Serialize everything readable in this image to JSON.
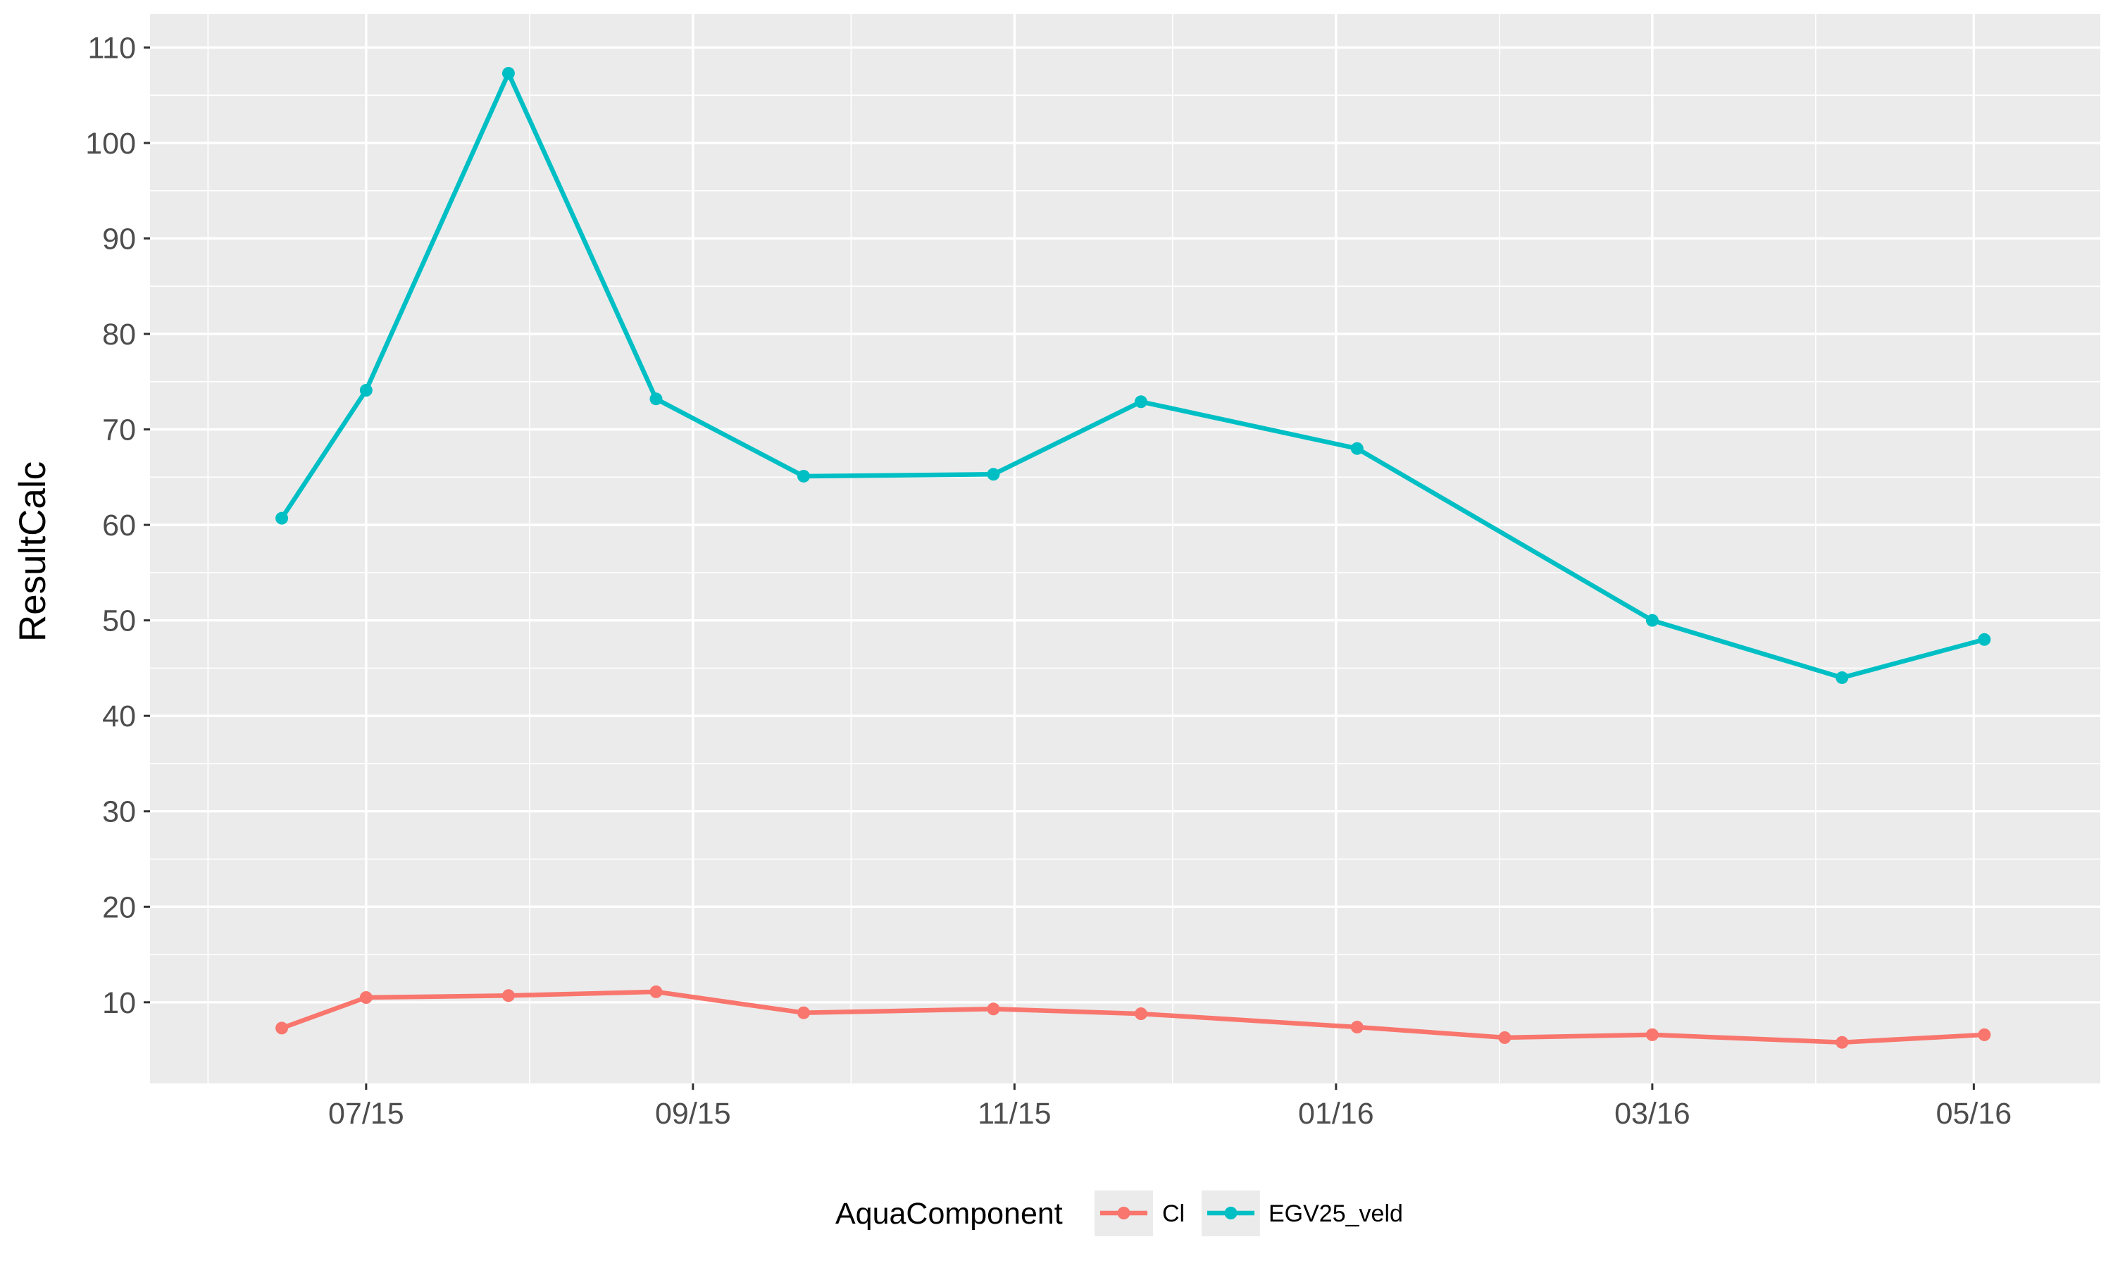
{
  "chart_data": {
    "type": "line",
    "title": "",
    "xlabel": "",
    "ylabel": "ResultCalc",
    "x_axis": {
      "kind": "date",
      "range": [
        "2015-05-21",
        "2016-05-25"
      ],
      "tick_dates": [
        "2015-07-01",
        "2015-09-01",
        "2015-11-01",
        "2016-01-01",
        "2016-03-01",
        "2016-05-01"
      ],
      "tick_labels": [
        "07/15",
        "09/15",
        "11/15",
        "01/16",
        "03/16",
        "05/16"
      ],
      "minor_tick_dates": [
        "2015-06-01",
        "2015-08-01",
        "2015-10-01",
        "2015-12-01",
        "2016-02-01",
        "2016-04-01"
      ]
    },
    "y_axis": {
      "range": [
        1.5,
        113.5
      ],
      "ticks": [
        10,
        20,
        30,
        40,
        50,
        60,
        70,
        80,
        90,
        100,
        110
      ],
      "tick_labels": [
        "10",
        "20",
        "30",
        "40",
        "50",
        "60",
        "70",
        "80",
        "90",
        "100",
        "110"
      ]
    },
    "grid": true,
    "legend": {
      "title": "AquaComponent",
      "position": "bottom"
    },
    "series": [
      {
        "name": "Cl",
        "color": "#F8766D",
        "points": [
          {
            "x": "2015-06-15",
            "y": 7.3
          },
          {
            "x": "2015-07-01",
            "y": 10.5
          },
          {
            "x": "2015-07-28",
            "y": 10.7
          },
          {
            "x": "2015-08-25",
            "y": 11.1
          },
          {
            "x": "2015-09-22",
            "y": 8.9
          },
          {
            "x": "2015-10-28",
            "y": 9.3
          },
          {
            "x": "2015-11-25",
            "y": 8.8
          },
          {
            "x": "2016-01-05",
            "y": 7.4
          },
          {
            "x": "2016-02-02",
            "y": 6.3
          },
          {
            "x": "2016-03-01",
            "y": 6.6
          },
          {
            "x": "2016-04-06",
            "y": 5.8
          },
          {
            "x": "2016-05-03",
            "y": 6.6
          }
        ]
      },
      {
        "name": "EGV25_veld",
        "color": "#00BFC4",
        "points": [
          {
            "x": "2015-06-15",
            "y": 60.7
          },
          {
            "x": "2015-07-01",
            "y": 74.1
          },
          {
            "x": "2015-07-28",
            "y": 107.3
          },
          {
            "x": "2015-08-25",
            "y": 73.2
          },
          {
            "x": "2015-09-22",
            "y": 65.1
          },
          {
            "x": "2015-10-28",
            "y": 65.3
          },
          {
            "x": "2015-11-25",
            "y": 72.9
          },
          {
            "x": "2016-01-05",
            "y": 68.0
          },
          {
            "x": "2016-03-01",
            "y": 50.0
          },
          {
            "x": "2016-04-06",
            "y": 44.0
          },
          {
            "x": "2016-05-03",
            "y": 48.0
          }
        ]
      }
    ]
  }
}
